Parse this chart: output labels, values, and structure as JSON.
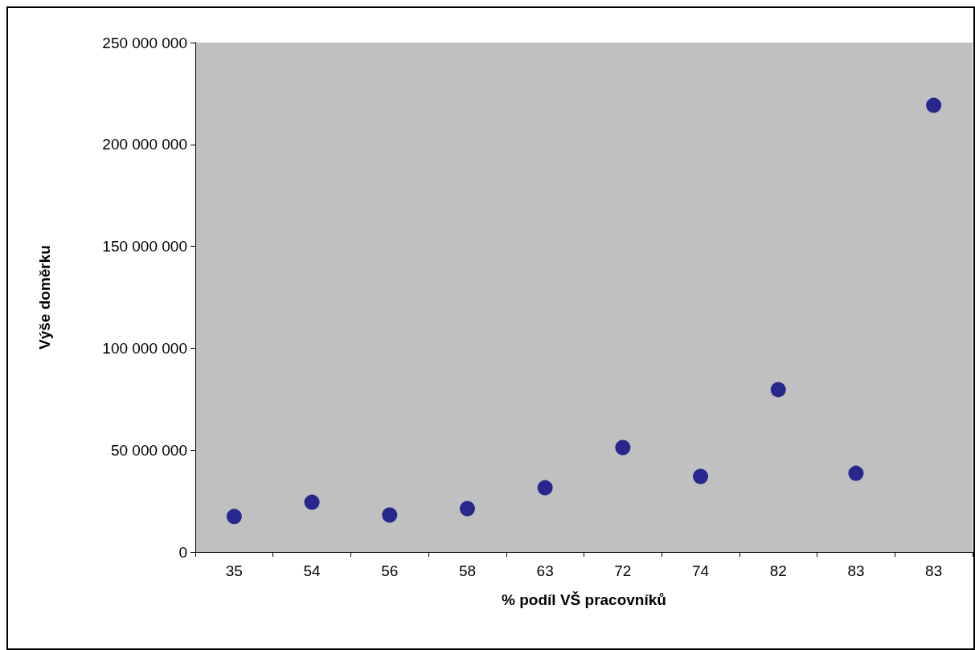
{
  "chart_data": {
    "type": "scatter",
    "xlabel": "% podíl VŠ pracovníků",
    "ylabel": "Výše doměrku",
    "categories": [
      "35",
      "54",
      "56",
      "58",
      "63",
      "72",
      "74",
      "82",
      "83",
      "83"
    ],
    "series": [
      {
        "color": "#000080",
        "values": [
          17400000,
          24400000,
          18100000,
          21300000,
          31500000,
          51300000,
          37100000,
          79700000,
          38600000,
          219200000
        ]
      }
    ],
    "ylim": [
      0,
      250000000
    ],
    "yticks": [
      {
        "value": 0,
        "label": "0"
      },
      {
        "value": 50000000,
        "label": "50 000 000"
      },
      {
        "value": 100000000,
        "label": "100 000 000"
      },
      {
        "value": 150000000,
        "label": "150 000 000"
      },
      {
        "value": 200000000,
        "label": "200 000 000"
      },
      {
        "value": 250000000,
        "label": "250 000 000"
      }
    ],
    "grid": false,
    "marker": "circle"
  }
}
